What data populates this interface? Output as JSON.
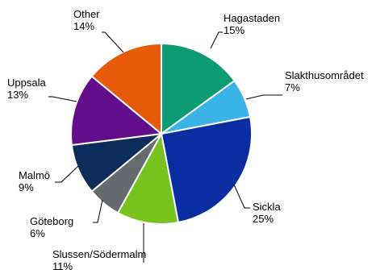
{
  "chart_data": {
    "type": "pie",
    "slices": [
      {
        "label": "Hagastaden",
        "value": 15,
        "display": "15%",
        "color": "#0c9c74"
      },
      {
        "label": "Slakthusområdet",
        "value": 7,
        "display": "7%",
        "color": "#3ab4e6"
      },
      {
        "label": "Sickla",
        "value": 25,
        "display": "25%",
        "color": "#0a2ea2"
      },
      {
        "label": "Slussen/Södermalm",
        "value": 11,
        "display": "11%",
        "color": "#78c31e"
      },
      {
        "label": "Göteborg",
        "value": 6,
        "display": "6%",
        "color": "#656b6e"
      },
      {
        "label": "Malmö",
        "value": 9,
        "display": "9%",
        "color": "#0c2c5a"
      },
      {
        "label": "Uppsala",
        "value": 13,
        "display": "13%",
        "color": "#630e8d"
      },
      {
        "label": "Other",
        "value": 14,
        "display": "14%",
        "color": "#e65a0a"
      }
    ],
    "start_angle": "top",
    "direction": "clockwise",
    "labels": "outside with leader lines",
    "legend": "none"
  }
}
